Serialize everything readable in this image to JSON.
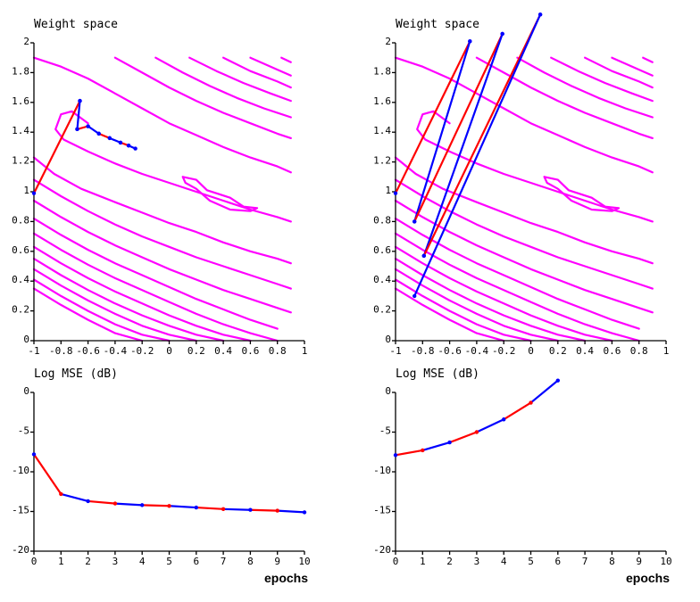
{
  "colors": {
    "contour": "#ff00ff",
    "path_a": "#ff0000",
    "path_b": "#0000ff",
    "axis": "#000000"
  },
  "chart_data": [
    {
      "type": "line",
      "panel": "weight-space-left",
      "title": "Weight space",
      "xlim": [
        -1,
        1
      ],
      "ylim": [
        0,
        2
      ],
      "x_ticks": [
        "-1",
        "-0.8",
        "-0.6",
        "-0.4",
        "-0.2",
        "0",
        "0.2",
        "0.4",
        "0.6",
        "0.8",
        "1"
      ],
      "y_ticks": [
        "0",
        "0.2",
        "0.4",
        "0.6",
        "0.8",
        "1",
        "1.2",
        "1.4",
        "1.6",
        "1.8",
        "2"
      ],
      "contours": [
        [
          [
            -1,
            0.35
          ],
          [
            -0.8,
            0.24
          ],
          [
            -0.6,
            0.14
          ],
          [
            -0.4,
            0.05
          ],
          [
            -0.2,
            0.0
          ]
        ],
        [
          [
            -1,
            0.41
          ],
          [
            -0.8,
            0.3
          ],
          [
            -0.6,
            0.2
          ],
          [
            -0.4,
            0.11
          ],
          [
            -0.2,
            0.04
          ],
          [
            0,
            0.0
          ]
        ],
        [
          [
            -1,
            0.48
          ],
          [
            -0.8,
            0.37
          ],
          [
            -0.6,
            0.27
          ],
          [
            -0.4,
            0.18
          ],
          [
            -0.2,
            0.1
          ],
          [
            0,
            0.04
          ],
          [
            0.2,
            0.0
          ]
        ],
        [
          [
            -1,
            0.55
          ],
          [
            -0.8,
            0.44
          ],
          [
            -0.6,
            0.34
          ],
          [
            -0.4,
            0.25
          ],
          [
            -0.2,
            0.17
          ],
          [
            0,
            0.1
          ],
          [
            0.2,
            0.04
          ],
          [
            0.4,
            0.0
          ]
        ],
        [
          [
            -1,
            0.63
          ],
          [
            -0.8,
            0.52
          ],
          [
            -0.6,
            0.42
          ],
          [
            -0.4,
            0.33
          ],
          [
            -0.2,
            0.25
          ],
          [
            0,
            0.17
          ],
          [
            0.2,
            0.1
          ],
          [
            0.4,
            0.04
          ],
          [
            0.6,
            0.0
          ]
        ],
        [
          [
            -1,
            0.72
          ],
          [
            -0.8,
            0.61
          ],
          [
            -0.6,
            0.51
          ],
          [
            -0.4,
            0.42
          ],
          [
            -0.2,
            0.34
          ],
          [
            0,
            0.26
          ],
          [
            0.2,
            0.18
          ],
          [
            0.4,
            0.11
          ],
          [
            0.6,
            0.05
          ],
          [
            0.8,
            0.0
          ]
        ],
        [
          [
            -1,
            0.82
          ],
          [
            -0.8,
            0.71
          ],
          [
            -0.6,
            0.61
          ],
          [
            -0.4,
            0.52
          ],
          [
            -0.2,
            0.44
          ],
          [
            0,
            0.36
          ],
          [
            0.2,
            0.28
          ],
          [
            0.4,
            0.21
          ],
          [
            0.6,
            0.14
          ],
          [
            0.8,
            0.08
          ]
        ],
        [
          [
            -1,
            0.94
          ],
          [
            -0.8,
            0.83
          ],
          [
            -0.6,
            0.73
          ],
          [
            -0.4,
            0.64
          ],
          [
            -0.2,
            0.56
          ],
          [
            0,
            0.48
          ],
          [
            0.2,
            0.41
          ],
          [
            0.4,
            0.34
          ],
          [
            0.6,
            0.28
          ],
          [
            0.8,
            0.22
          ],
          [
            0.9,
            0.19
          ]
        ],
        [
          [
            -1,
            1.08
          ],
          [
            -0.8,
            0.97
          ],
          [
            -0.6,
            0.87
          ],
          [
            -0.4,
            0.78
          ],
          [
            -0.2,
            0.7
          ],
          [
            0,
            0.63
          ],
          [
            0.2,
            0.56
          ],
          [
            0.4,
            0.5
          ],
          [
            0.6,
            0.44
          ],
          [
            0.8,
            0.38
          ],
          [
            0.9,
            0.35
          ]
        ],
        [
          [
            -1,
            1.23
          ],
          [
            -0.85,
            1.12
          ],
          [
            -0.65,
            1.02
          ],
          [
            -0.4,
            0.93
          ],
          [
            -0.2,
            0.86
          ],
          [
            0,
            0.79
          ],
          [
            0.2,
            0.73
          ],
          [
            0.4,
            0.66
          ],
          [
            0.6,
            0.6
          ],
          [
            0.8,
            0.55
          ],
          [
            0.9,
            0.52
          ]
        ],
        [
          [
            -0.6,
            1.46
          ],
          [
            -0.72,
            1.54
          ],
          [
            -0.8,
            1.52
          ],
          [
            -0.84,
            1.42
          ],
          [
            -0.78,
            1.35
          ],
          [
            -0.6,
            1.27
          ],
          [
            -0.4,
            1.19
          ],
          [
            -0.2,
            1.12
          ],
          [
            0,
            1.06
          ],
          [
            0.2,
            1.0
          ],
          [
            0.4,
            0.94
          ],
          [
            0.6,
            0.88
          ],
          [
            0.8,
            0.83
          ],
          [
            0.9,
            0.8
          ]
        ],
        [
          [
            -1,
            1.9
          ],
          [
            -0.8,
            1.84
          ],
          [
            -0.6,
            1.76
          ],
          [
            -0.4,
            1.66
          ],
          [
            -0.2,
            1.56
          ],
          [
            0,
            1.46
          ],
          [
            0.2,
            1.38
          ],
          [
            0.4,
            1.3
          ],
          [
            0.6,
            1.23
          ],
          [
            0.8,
            1.17
          ],
          [
            0.9,
            1.13
          ]
        ],
        [
          [
            -0.4,
            1.9
          ],
          [
            -0.2,
            1.8
          ],
          [
            0,
            1.7
          ],
          [
            0.2,
            1.61
          ],
          [
            0.4,
            1.53
          ],
          [
            0.6,
            1.46
          ],
          [
            0.8,
            1.39
          ],
          [
            0.9,
            1.36
          ]
        ],
        [
          [
            -0.1,
            1.9
          ],
          [
            0.1,
            1.8
          ],
          [
            0.3,
            1.71
          ],
          [
            0.5,
            1.63
          ],
          [
            0.7,
            1.56
          ],
          [
            0.9,
            1.5
          ]
        ],
        [
          [
            0.15,
            1.9
          ],
          [
            0.35,
            1.81
          ],
          [
            0.55,
            1.73
          ],
          [
            0.75,
            1.66
          ],
          [
            0.9,
            1.61
          ]
        ],
        [
          [
            0.4,
            1.9
          ],
          [
            0.6,
            1.81
          ],
          [
            0.8,
            1.74
          ],
          [
            0.9,
            1.7
          ]
        ],
        [
          [
            0.6,
            1.9
          ],
          [
            0.8,
            1.82
          ],
          [
            0.9,
            1.78
          ]
        ],
        [
          [
            0.83,
            1.9
          ],
          [
            0.9,
            1.87
          ]
        ],
        [
          [
            0.1,
            1.1
          ],
          [
            0.2,
            1.08
          ],
          [
            0.28,
            1.01
          ],
          [
            0.45,
            0.96
          ],
          [
            0.55,
            0.9
          ],
          [
            0.65,
            0.89
          ],
          [
            0.6,
            0.87
          ],
          [
            0.45,
            0.88
          ],
          [
            0.3,
            0.94
          ],
          [
            0.2,
            1.02
          ],
          [
            0.12,
            1.06
          ],
          [
            0.1,
            1.1
          ]
        ]
      ],
      "series": [
        {
          "color": "red",
          "points": [
            [
              -1,
              0.99
            ],
            [
              -0.66,
              1.61
            ]
          ]
        },
        {
          "color": "blue",
          "points": [
            [
              -0.66,
              1.61
            ],
            [
              -0.68,
              1.42
            ]
          ]
        },
        {
          "color": "red",
          "points": [
            [
              -0.68,
              1.42
            ],
            [
              -0.6,
              1.44
            ]
          ]
        },
        {
          "color": "blue",
          "points": [
            [
              -0.6,
              1.44
            ],
            [
              -0.52,
              1.39
            ]
          ]
        },
        {
          "color": "red",
          "points": [
            [
              -0.52,
              1.39
            ],
            [
              -0.44,
              1.36
            ]
          ]
        },
        {
          "color": "blue",
          "points": [
            [
              -0.44,
              1.36
            ],
            [
              -0.36,
              1.33
            ]
          ]
        },
        {
          "color": "red",
          "points": [
            [
              -0.36,
              1.33
            ],
            [
              -0.3,
              1.31
            ]
          ]
        },
        {
          "color": "blue",
          "points": [
            [
              -0.3,
              1.31
            ],
            [
              -0.25,
              1.29
            ]
          ]
        }
      ]
    },
    {
      "type": "line",
      "panel": "weight-space-right",
      "title": "Weight space",
      "xlim": [
        -1,
        1
      ],
      "ylim": [
        0,
        2
      ],
      "x_ticks": [
        "-1",
        "-0.8",
        "-0.6",
        "-0.4",
        "-0.2",
        "0",
        "0.2",
        "0.4",
        "0.6",
        "0.8",
        "1"
      ],
      "y_ticks": [
        "0",
        "0.2",
        "0.4",
        "0.6",
        "0.8",
        "1",
        "1.2",
        "1.4",
        "1.6",
        "1.8",
        "2"
      ],
      "contours_same_as_left": true,
      "series": [
        {
          "color": "red",
          "points": [
            [
              -1,
              0.99
            ],
            [
              -0.45,
              2.01
            ]
          ]
        },
        {
          "color": "blue",
          "points": [
            [
              -0.45,
              2.01
            ],
            [
              -0.86,
              0.8
            ]
          ]
        },
        {
          "color": "red",
          "points": [
            [
              -0.86,
              0.8
            ],
            [
              -0.21,
              2.06
            ]
          ]
        },
        {
          "color": "blue",
          "points": [
            [
              -0.21,
              2.06
            ],
            [
              -0.79,
              0.57
            ]
          ]
        },
        {
          "color": "red",
          "points": [
            [
              -0.79,
              0.57
            ],
            [
              0.07,
              2.19
            ]
          ]
        },
        {
          "color": "blue",
          "points": [
            [
              0.07,
              2.19
            ],
            [
              -0.86,
              0.3
            ]
          ]
        }
      ]
    },
    {
      "type": "line",
      "panel": "mse-left",
      "title": "Log MSE (dB)",
      "xlabel": "epochs",
      "xlim": [
        0,
        10
      ],
      "ylim": [
        -20,
        0
      ],
      "x_ticks": [
        "0",
        "1",
        "2",
        "3",
        "4",
        "5",
        "6",
        "7",
        "8",
        "9",
        "10"
      ],
      "y_ticks": [
        "0",
        "-5",
        "-10",
        "-15",
        "-20"
      ],
      "x": [
        0,
        1,
        2,
        3,
        4,
        5,
        6,
        7,
        8,
        9,
        10
      ],
      "y": [
        -7.8,
        -12.8,
        -13.7,
        -14.0,
        -14.2,
        -14.3,
        -14.5,
        -14.7,
        -14.8,
        -14.9,
        -15.1
      ]
    },
    {
      "type": "line",
      "panel": "mse-right",
      "title": "Log MSE (dB)",
      "xlabel": "epochs",
      "xlim": [
        0,
        10
      ],
      "ylim": [
        -20,
        0
      ],
      "x_ticks": [
        "0",
        "1",
        "2",
        "3",
        "4",
        "5",
        "6",
        "7",
        "8",
        "9",
        "10"
      ],
      "y_ticks": [
        "0",
        "-5",
        "-10",
        "-15",
        "-20"
      ],
      "x": [
        0,
        1,
        2,
        3,
        4,
        5,
        6
      ],
      "y": [
        -7.9,
        -7.3,
        -6.3,
        -5.0,
        -3.4,
        -1.3,
        1.5
      ]
    }
  ]
}
